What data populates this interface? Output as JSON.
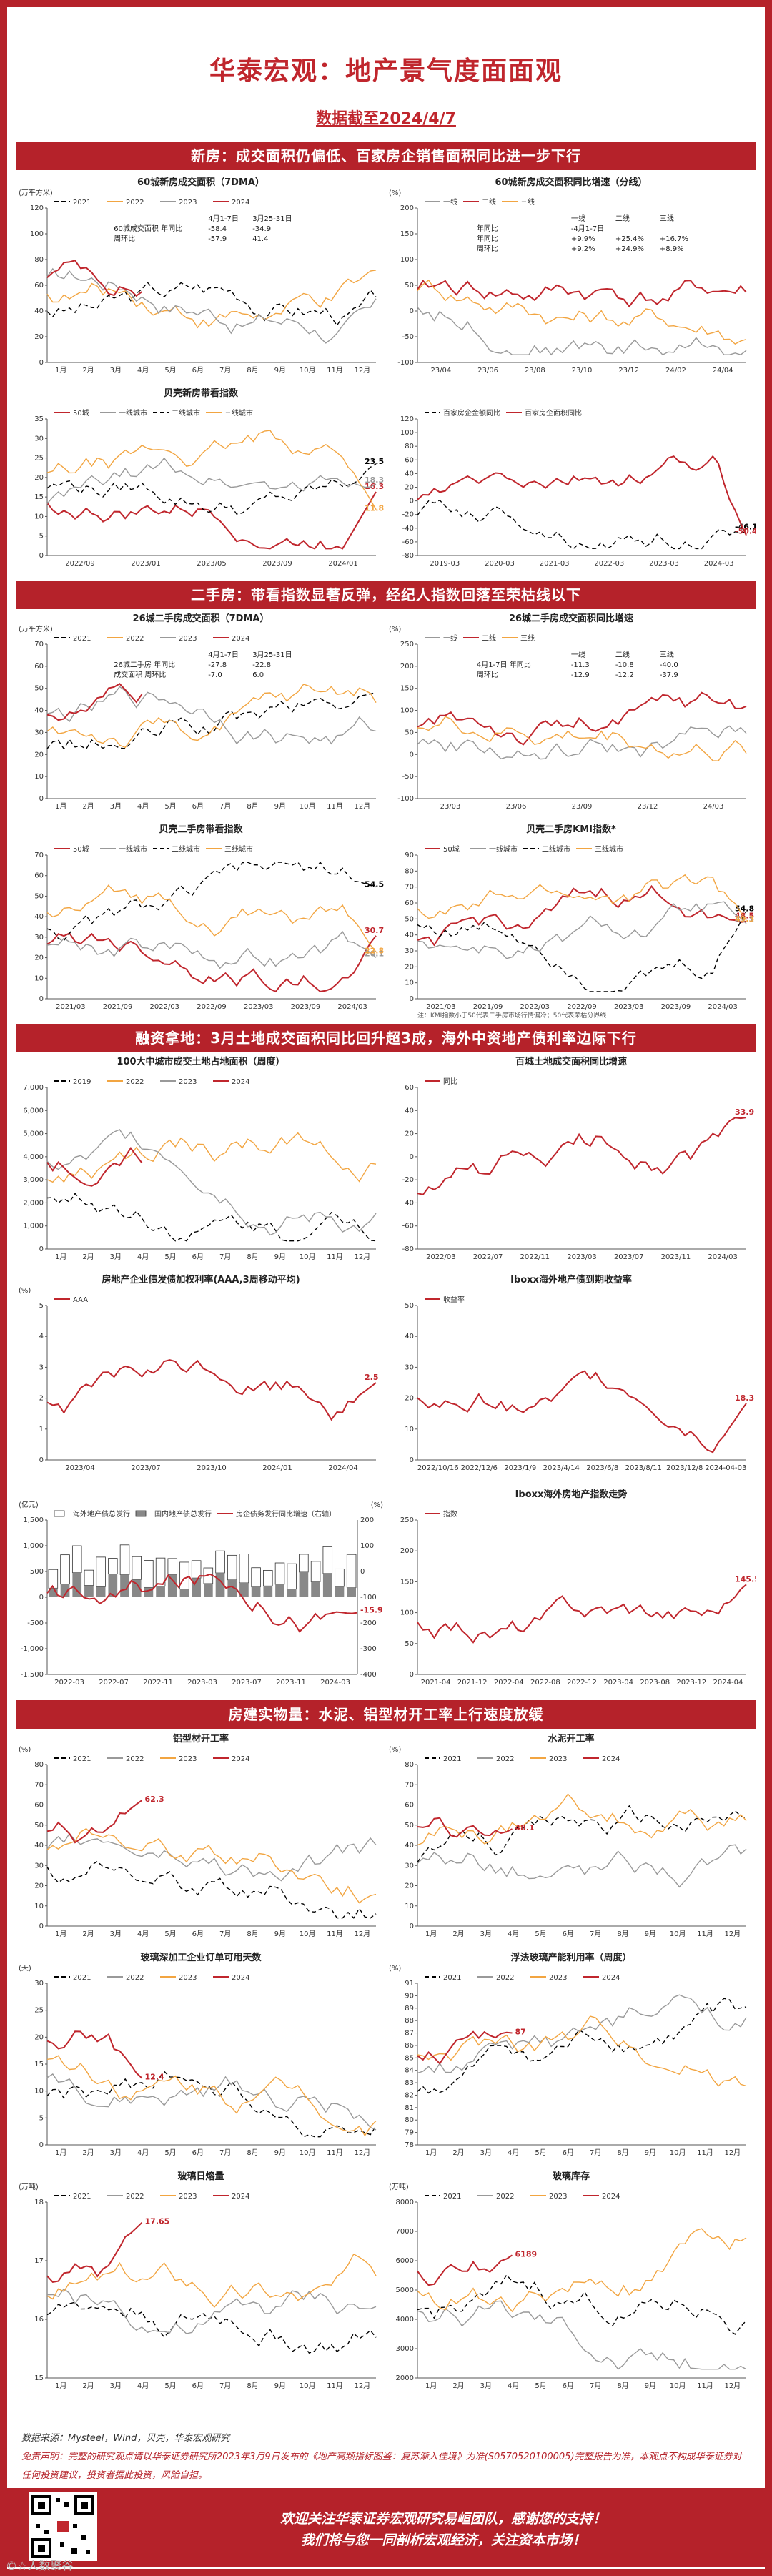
{
  "header": {
    "title": "华泰宏观：地产景气度面面观",
    "date": "数据截至2024/4/7"
  },
  "sections": [
    {
      "title": "新房：成交面积仍偏低、百家房企销售面积同比进一步下行"
    },
    {
      "title": "二手房：带看指数显著反弹，经纪人指数回落至荣枯线以下"
    },
    {
      "title": "融资拿地：3月土地成交面积同比回升超3成，海外中资地产债利率边际下行"
    },
    {
      "title": "房建实物量：水泥、铝型材开工率上行速度放缓"
    }
  ],
  "footer": {
    "source": "数据来源：Mysteel，Wind，贝壳，华泰宏观研究",
    "disclaimer": "免责声明：完整的研究观点请以华泰证券研究所2023年3月9日发布的《地产高频指标图鉴：复苏渐入佳境》为准(S0570520100005)完整报告为准，本观点不构成华泰证券对任何投资建议，投资者据此投资，风险自担。",
    "thanks1": "欢迎关注华泰证券宏观研究易峘团队，感谢您的支持！",
    "thanks2": "我们将与您一同剖析宏观经济，关注资本市场！",
    "watermark": "©☆人数聚谷"
  },
  "chart_data": [
    {
      "id": "c1",
      "type": "line",
      "title": "60城新房成交面积（7DMA）",
      "unit": "(万平方米)",
      "x_ticks": [
        "1月",
        "2月",
        "3月",
        "4月",
        "5月",
        "6月",
        "7月",
        "8月",
        "9月",
        "10月",
        "11月",
        "12月"
      ],
      "y_ticks": [
        "0",
        "20",
        "40",
        "60",
        "80",
        "100",
        "120"
      ],
      "ylim": [
        0,
        120
      ],
      "series": [
        {
          "name": "2021",
          "color": "#000",
          "dash": "6,4"
        },
        {
          "name": "2022",
          "color": "#f2a541"
        },
        {
          "name": "2023",
          "color": "#999"
        },
        {
          "name": "2024",
          "color": "#c0262d"
        }
      ],
      "annotation": {
        "header": [
          "",
          "4月1-7日",
          "3月25-31日"
        ],
        "rows": [
          [
            "60城成交面积 年同比",
            "-58.4",
            "-34.9"
          ],
          [
            "周环比",
            "-57.9",
            "41.4"
          ]
        ]
      }
    },
    {
      "id": "c2",
      "type": "line",
      "title": "60城新房成交面积同比增速（分线）",
      "unit": "(%)",
      "x_ticks": [
        "23/04",
        "23/06",
        "23/08",
        "23/10",
        "23/12",
        "24/02",
        "24/04"
      ],
      "y_ticks": [
        "-100",
        "-50",
        "0",
        "50",
        "100",
        "150",
        "200"
      ],
      "ylim": [
        -100,
        200
      ],
      "series": [
        {
          "name": "一线",
          "color": "#999"
        },
        {
          "name": "二线",
          "color": "#c0262d"
        },
        {
          "name": "三线",
          "color": "#f2a541"
        }
      ],
      "annotation": {
        "header": [
          "",
          "一线",
          "二线",
          "三线"
        ],
        "rows": [
          [
            "年同比",
            "-4月1-7日",
            ""
          ],
          [
            "年同比",
            "+9.9%",
            "+25.4%",
            "+16.7%"
          ],
          [
            "周环比",
            "+9.2%",
            "+24.9%",
            "+8.9%"
          ]
        ]
      }
    },
    {
      "id": "c3",
      "type": "line",
      "title": "贝壳新房带看指数",
      "x_ticks": [
        "2022/09",
        "2023/01",
        "2023/05",
        "2023/09",
        "2024/01"
      ],
      "y_ticks": [
        "0",
        "5",
        "10",
        "15",
        "20",
        "25",
        "30",
        "35"
      ],
      "ylim": [
        0,
        35
      ],
      "series": [
        {
          "name": "50城",
          "color": "#c0262d",
          "last": "16.3"
        },
        {
          "name": "一线城市",
          "color": "#999",
          "last": "18.3"
        },
        {
          "name": "二线城市",
          "color": "#000",
          "dash": "6,4",
          "last": "23.5"
        },
        {
          "name": "三线城市",
          "color": "#f2a541",
          "last": "11.8"
        }
      ]
    },
    {
      "id": "c4",
      "type": "line",
      "title": "",
      "x_ticks": [
        "2019-03",
        "2020-03",
        "2021-03",
        "2022-03",
        "2023-03",
        "2024-03"
      ],
      "y_ticks": [
        "-80",
        "-60",
        "-40",
        "-20",
        "0",
        "20",
        "40",
        "60",
        "80",
        "100",
        "120"
      ],
      "ylim": [
        -80,
        120
      ],
      "series": [
        {
          "name": "百家房企金额同比",
          "color": "#000",
          "dash": "6,4",
          "last": "-46.1"
        },
        {
          "name": "百家房企面积同比",
          "color": "#c0262d",
          "last": "-50.4"
        }
      ]
    },
    {
      "id": "c5",
      "type": "line",
      "title": "26城二手房成交面积（7DMA）",
      "unit": "(万平方米)",
      "x_ticks": [
        "1月",
        "2月",
        "3月",
        "4月",
        "5月",
        "6月",
        "7月",
        "8月",
        "9月",
        "10月",
        "11月",
        "12月"
      ],
      "y_ticks": [
        "0",
        "10",
        "20",
        "30",
        "40",
        "50",
        "60",
        "70"
      ],
      "ylim": [
        0,
        70
      ],
      "series": [
        {
          "name": "2021",
          "color": "#000",
          "dash": "6,4"
        },
        {
          "name": "2022",
          "color": "#f2a541"
        },
        {
          "name": "2023",
          "color": "#999"
        },
        {
          "name": "2024",
          "color": "#c0262d"
        }
      ],
      "annotation": {
        "header": [
          "",
          "4月1-7日",
          "3月25-31日"
        ],
        "rows": [
          [
            "26城二手房 年同比",
            "-27.8",
            "-22.8"
          ],
          [
            "成交面积 周环比",
            "-7.0",
            "6.0"
          ]
        ]
      }
    },
    {
      "id": "c6",
      "type": "line",
      "title": "26城二手房成交面积同比增速",
      "unit": "(%)",
      "x_ticks": [
        "23/03",
        "23/06",
        "23/09",
        "23/12",
        "24/03"
      ],
      "y_ticks": [
        "-100",
        "-50",
        "0",
        "50",
        "100",
        "150",
        "200",
        "250"
      ],
      "ylim": [
        -100,
        250
      ],
      "series": [
        {
          "name": "一线",
          "color": "#999"
        },
        {
          "name": "二线",
          "color": "#c0262d"
        },
        {
          "name": "三线",
          "color": "#f2a541"
        }
      ],
      "annotation": {
        "header": [
          "",
          "一线",
          "二线",
          "三线"
        ],
        "rows": [
          [
            "4月1-7日 年同比",
            "-11.3",
            "-10.8",
            "-40.0"
          ],
          [
            "周环比",
            "-12.9",
            "-12.2",
            "-37.9"
          ]
        ]
      }
    },
    {
      "id": "c7",
      "type": "line",
      "title": "贝壳二手房带看指数",
      "x_ticks": [
        "2021/03",
        "2021/09",
        "2022/03",
        "2022/09",
        "2023/03",
        "2023/09",
        "2024/03"
      ],
      "y_ticks": [
        "0",
        "10",
        "20",
        "30",
        "40",
        "50",
        "60",
        "70"
      ],
      "ylim": [
        0,
        70
      ],
      "series": [
        {
          "name": "50城",
          "color": "#c0262d",
          "last": "30.7"
        },
        {
          "name": "一线城市",
          "color": "#999",
          "last": "20.1"
        },
        {
          "name": "二线城市",
          "color": "#000",
          "dash": "6,4",
          "last": "54.5"
        },
        {
          "name": "三线城市",
          "color": "#f2a541",
          "last": "22.8"
        }
      ]
    },
    {
      "id": "c8",
      "type": "line",
      "title": "贝壳二手房KMI指数*",
      "x_ticks": [
        "2021/03",
        "2021/09",
        "2022/03",
        "2022/09",
        "2023/03",
        "2023/09",
        "2024/03"
      ],
      "y_ticks": [
        "0",
        "10",
        "20",
        "30",
        "40",
        "50",
        "60",
        "70",
        "80",
        "90"
      ],
      "ylim": [
        0,
        90
      ],
      "series": [
        {
          "name": "50城",
          "color": "#c0262d",
          "last": "48.5"
        },
        {
          "name": "一线城市",
          "color": "#999",
          "last": "47.1"
        },
        {
          "name": "二线城市",
          "color": "#000",
          "dash": "6,4",
          "last": "54.8"
        },
        {
          "name": "三线城市",
          "color": "#f2a541",
          "last": "49.3"
        }
      ],
      "note": "注：KMI指数小于50代表二手房市场行情偏冷；50代表荣枯分界线"
    },
    {
      "id": "c9",
      "type": "line",
      "title": "100大中城市成交土地占地面积（周度）",
      "x_ticks": [
        "1月",
        "2月",
        "3月",
        "4月",
        "5月",
        "6月",
        "7月",
        "8月",
        "9月",
        "10月",
        "11月",
        "12月"
      ],
      "y_ticks": [
        "0",
        "1,000",
        "2,000",
        "3,000",
        "4,000",
        "5,000",
        "6,000",
        "7,000"
      ],
      "ylim": [
        0,
        7000
      ],
      "series": [
        {
          "name": "2019",
          "color": "#000",
          "dash": "6,4"
        },
        {
          "name": "2022",
          "color": "#f2a541"
        },
        {
          "name": "2023",
          "color": "#999"
        },
        {
          "name": "2024",
          "color": "#c0262d"
        }
      ]
    },
    {
      "id": "c10",
      "type": "line",
      "title": "百城土地成交面积同比增速",
      "x_ticks": [
        "2022/03",
        "2022/07",
        "2022/11",
        "2023/03",
        "2023/07",
        "2023/11",
        "2024/03"
      ],
      "y_ticks": [
        "-80",
        "-60",
        "-40",
        "-20",
        "0",
        "20",
        "40",
        "60"
      ],
      "ylim": [
        -80,
        60
      ],
      "series": [
        {
          "name": "同比",
          "color": "#c0262d",
          "last": "33.9"
        }
      ]
    },
    {
      "id": "c11",
      "type": "line",
      "title": "房地产企业债发债加权利率(AAA,3周移动平均)",
      "unit": "(%)",
      "x_ticks": [
        "2023/04",
        "2023/07",
        "2023/10",
        "2024/01",
        "2024/04"
      ],
      "y_ticks": [
        "0",
        "1",
        "2",
        "3",
        "4",
        "5"
      ],
      "ylim": [
        0,
        5
      ],
      "series": [
        {
          "name": "AAA",
          "color": "#c0262d",
          "last": "2.5"
        }
      ]
    },
    {
      "id": "c12",
      "type": "line",
      "title": "Iboxx海外地产债到期收益率",
      "x_ticks": [
        "2022/10/16",
        "2022/12/6",
        "2023/1/9",
        "2023/4/14",
        "2023/6/8",
        "2023/8/11",
        "2023/12/8",
        "2024-04-03"
      ],
      "y_ticks": [
        "0",
        "10",
        "20",
        "30",
        "40",
        "50"
      ],
      "ylim": [
        0,
        50
      ],
      "series": [
        {
          "name": "收益率",
          "color": "#c0262d",
          "last": "18.3"
        }
      ]
    },
    {
      "id": "c13",
      "type": "bar+line",
      "title": "",
      "unit": "(亿元)",
      "unit_r": "(%)",
      "x_ticks": [
        "2022-03",
        "2022-07",
        "2022-11",
        "2023-03",
        "2023-07",
        "2023-11",
        "2024-03"
      ],
      "y_ticks": [
        "-1,500",
        "-1,000",
        "-500",
        "0",
        "500",
        "1,000",
        "1,500"
      ],
      "ylim": [
        -1500,
        1500
      ],
      "y2_ticks": [
        "-400",
        "-300",
        "-200",
        "-100",
        "0",
        "100",
        "200"
      ],
      "series": [
        {
          "name": "海外地产债总发行",
          "color": "#fff"
        },
        {
          "name": "国内地产债总发行",
          "color": "#888"
        },
        {
          "name": "房企债务发行同比增速（右轴）",
          "color": "#c0262d",
          "last": "-15.9"
        }
      ]
    },
    {
      "id": "c14",
      "type": "line",
      "title": "Iboxx海外房地产指数走势",
      "x_ticks": [
        "2021-04",
        "2021-12",
        "2022-04",
        "2022-08",
        "2022-12",
        "2023-04",
        "2023-08",
        "2023-12",
        "2024-04"
      ],
      "y_ticks": [
        "0",
        "50",
        "100",
        "150",
        "200",
        "250"
      ],
      "ylim": [
        0,
        250
      ],
      "series": [
        {
          "name": "指数",
          "color": "#c0262d",
          "last": "145.5"
        }
      ]
    },
    {
      "id": "c15",
      "type": "line",
      "title": "铝型材开工率",
      "unit": "(%)",
      "x_ticks": [
        "1月",
        "2月",
        "3月",
        "4月",
        "5月",
        "6月",
        "7月",
        "8月",
        "9月",
        "10月",
        "11月",
        "12月"
      ],
      "y_ticks": [
        "0",
        "10",
        "20",
        "30",
        "40",
        "50",
        "60",
        "70",
        "80"
      ],
      "ylim": [
        0,
        80
      ],
      "series": [
        {
          "name": "2021",
          "color": "#000",
          "dash": "6,4"
        },
        {
          "name": "2022",
          "color": "#999"
        },
        {
          "name": "2023",
          "color": "#f2a541"
        },
        {
          "name": "2024",
          "color": "#c0262d",
          "last": "62.3"
        }
      ]
    },
    {
      "id": "c16",
      "type": "line",
      "title": "水泥开工率",
      "unit": "(%)",
      "x_ticks": [
        "1月",
        "2月",
        "3月",
        "4月",
        "5月",
        "6月",
        "7月",
        "8月",
        "9月",
        "10月",
        "11月",
        "12月"
      ],
      "y_ticks": [
        "0",
        "10",
        "20",
        "30",
        "40",
        "50",
        "60",
        "70",
        "80"
      ],
      "ylim": [
        0,
        80
      ],
      "series": [
        {
          "name": "2021",
          "color": "#000",
          "dash": "6,4"
        },
        {
          "name": "2022",
          "color": "#999"
        },
        {
          "name": "2023",
          "color": "#f2a541"
        },
        {
          "name": "2024",
          "color": "#c0262d",
          "last": "48.1"
        }
      ]
    },
    {
      "id": "c17",
      "type": "line",
      "title": "玻璃深加工企业订单可用天数",
      "unit": "(天)",
      "x_ticks": [
        "1月",
        "2月",
        "3月",
        "4月",
        "5月",
        "6月",
        "7月",
        "8月",
        "9月",
        "10月",
        "11月",
        "12月"
      ],
      "y_ticks": [
        "0",
        "5",
        "10",
        "15",
        "20",
        "25",
        "30"
      ],
      "ylim": [
        0,
        30
      ],
      "series": [
        {
          "name": "2021",
          "color": "#000",
          "dash": "6,4"
        },
        {
          "name": "2022",
          "color": "#999"
        },
        {
          "name": "2023",
          "color": "#f2a541"
        },
        {
          "name": "2024",
          "color": "#c0262d",
          "last": "12.4"
        }
      ]
    },
    {
      "id": "c18",
      "type": "line",
      "title": "浮法玻璃产能利用率（周度）",
      "unit": "(%)",
      "x_ticks": [
        "1月",
        "2月",
        "3月",
        "4月",
        "5月",
        "6月",
        "7月",
        "8月",
        "9月",
        "10月",
        "11月",
        "12月"
      ],
      "y_ticks": [
        "78",
        "79",
        "80",
        "81",
        "82",
        "83",
        "84",
        "85",
        "86",
        "87",
        "88",
        "89",
        "90",
        "91"
      ],
      "ylim": [
        78,
        91
      ],
      "series": [
        {
          "name": "2021",
          "color": "#000",
          "dash": "6,4"
        },
        {
          "name": "2022",
          "color": "#999"
        },
        {
          "name": "2023",
          "color": "#f2a541"
        },
        {
          "name": "2024",
          "color": "#c0262d",
          "last": "87"
        }
      ]
    },
    {
      "id": "c19",
      "type": "line",
      "title": "玻璃日熔量",
      "unit": "(万吨)",
      "x_ticks": [
        "1月",
        "2月",
        "3月",
        "4月",
        "5月",
        "6月",
        "7月",
        "8月",
        "9月",
        "10月",
        "11月",
        "12月"
      ],
      "y_ticks": [
        "15",
        "16",
        "17",
        "18"
      ],
      "ylim": [
        15,
        18
      ],
      "series": [
        {
          "name": "2021",
          "color": "#000",
          "dash": "6,4"
        },
        {
          "name": "2022",
          "color": "#999"
        },
        {
          "name": "2023",
          "color": "#f2a541"
        },
        {
          "name": "2024",
          "color": "#c0262d",
          "last": "17.65"
        }
      ]
    },
    {
      "id": "c20",
      "type": "line",
      "title": "玻璃库存",
      "unit": "(万吨)",
      "x_ticks": [
        "1月",
        "2月",
        "3月",
        "4月",
        "5月",
        "6月",
        "7月",
        "8月",
        "9月",
        "10月",
        "11月",
        "12月"
      ],
      "y_ticks": [
        "2000",
        "3000",
        "4000",
        "5000",
        "6000",
        "7000",
        "8000"
      ],
      "ylim": [
        2000,
        8000
      ],
      "series": [
        {
          "name": "2021",
          "color": "#000",
          "dash": "6,4"
        },
        {
          "name": "2022",
          "color": "#999"
        },
        {
          "name": "2023",
          "color": "#f2a541"
        },
        {
          "name": "2024",
          "color": "#c0262d",
          "last": "6189"
        }
      ]
    }
  ]
}
